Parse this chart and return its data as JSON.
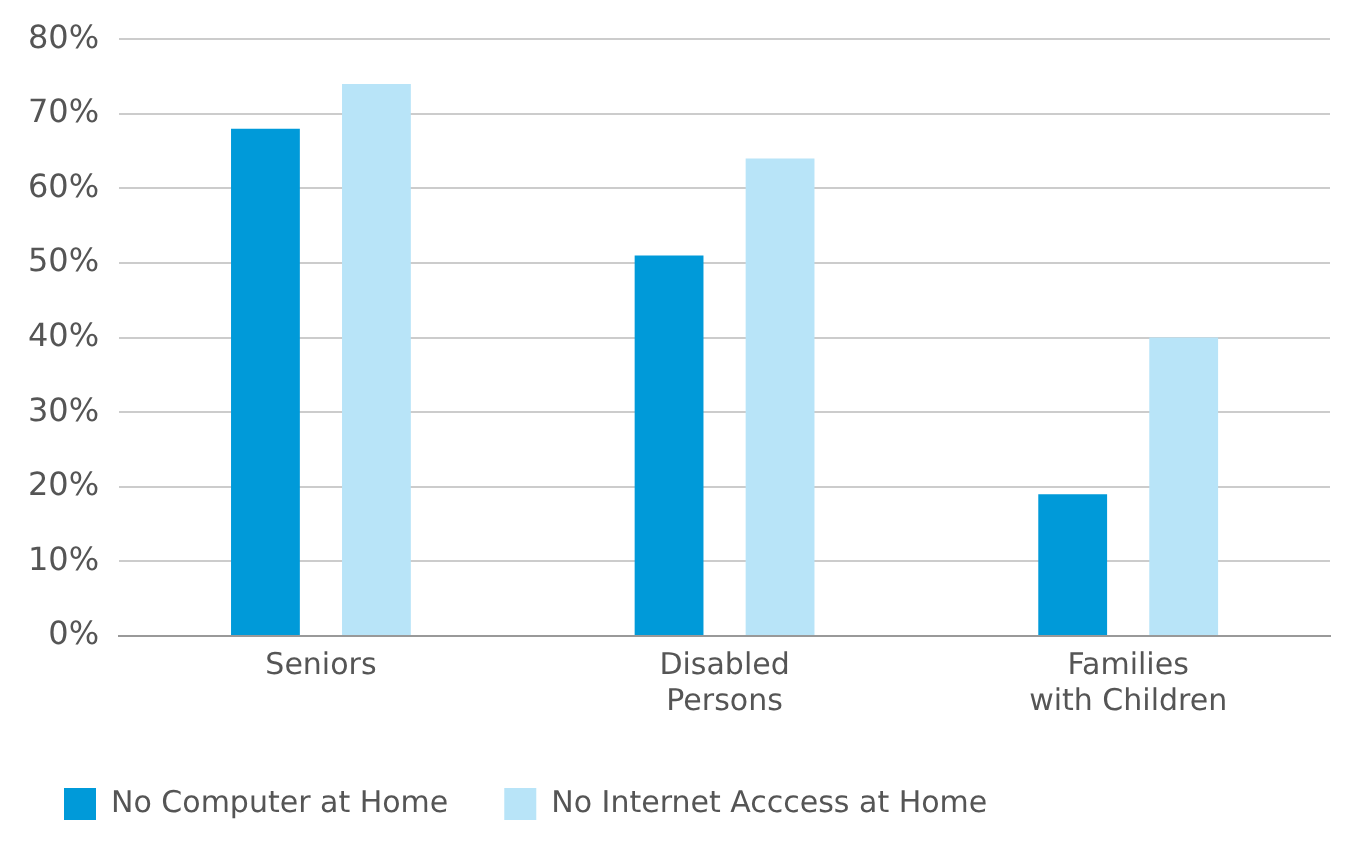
{
  "chart_data": {
    "type": "bar",
    "categories": [
      "Seniors",
      "Disabled\nPersons",
      "Families\nwith Children"
    ],
    "series": [
      {
        "name": "No Computer at Home",
        "color": "#009ad9",
        "values": [
          68,
          51,
          19
        ]
      },
      {
        "name": "No Internet Acccess at Home",
        "color": "#b8e4f8",
        "values": [
          74,
          64,
          40
        ]
      }
    ],
    "ylim": [
      0,
      80
    ],
    "yticks": [
      {
        "value": 0,
        "label": "0%"
      },
      {
        "value": 10,
        "label": "10%"
      },
      {
        "value": 20,
        "label": "20%"
      },
      {
        "value": 30,
        "label": "30%"
      },
      {
        "value": 40,
        "label": "40%"
      },
      {
        "value": 50,
        "label": "50%"
      },
      {
        "value": 60,
        "label": "60%"
      },
      {
        "value": 70,
        "label": "70%"
      },
      {
        "value": 80,
        "label": "80%"
      }
    ],
    "grid": "y",
    "legend": "bottom"
  }
}
